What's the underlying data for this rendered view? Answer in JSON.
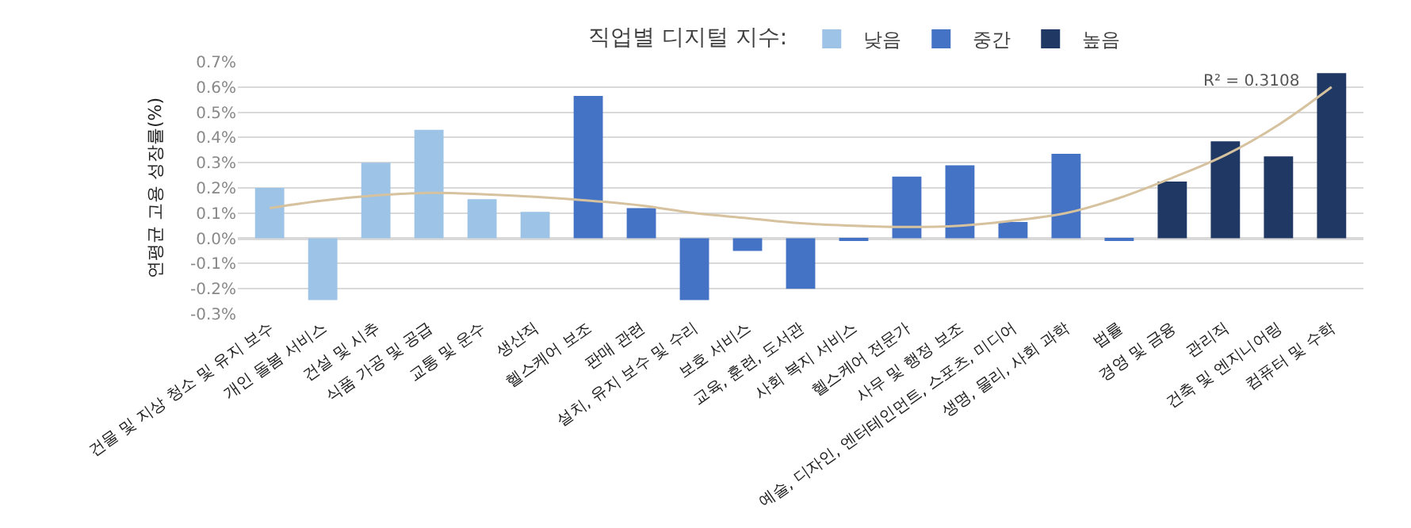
{
  "chart_data": {
    "type": "bar",
    "legend_title": "직업별 디지털 지수:",
    "ylabel": "연평균 고용 성장률(%)",
    "categories": [
      "건물 및 지상 청소 및 유지 보수",
      "개인 돌봄 서비스",
      "건설 및 시추",
      "식품 가공 및 공급",
      "교통 및 운수",
      "생산직",
      "헬스케어 보조",
      "판매 관련",
      "설치, 유지 보수 및 수리",
      "보호 서비스",
      "교육, 훈련, 도서관",
      "사회 복지 서비스",
      "헬스케어 전문가",
      "사무 및 행정 보조",
      "예술, 디자인, 엔터테인먼트, 스포츠, 미디어",
      "생명, 물리, 사회 과학",
      "법률",
      "경영 및 금융",
      "관리직",
      "건축 및 엔지니어링",
      "컴퓨터 및 수학"
    ],
    "series": [
      {
        "name": "낮음",
        "color": "#9dc3e6",
        "values": [
          0.2,
          -0.245,
          0.3,
          0.43,
          0.155,
          0.105,
          null,
          null,
          null,
          null,
          null,
          null,
          null,
          null,
          null,
          null,
          null,
          null,
          null,
          null,
          null
        ]
      },
      {
        "name": "중간",
        "color": "#4472c4",
        "values": [
          null,
          null,
          null,
          null,
          null,
          null,
          0.565,
          0.12,
          -0.245,
          -0.05,
          -0.2,
          -0.01,
          0.245,
          0.29,
          0.065,
          0.335,
          -0.01,
          null,
          null,
          null,
          null
        ]
      },
      {
        "name": "높음",
        "color": "#1f3864",
        "values": [
          null,
          null,
          null,
          null,
          null,
          null,
          null,
          null,
          null,
          null,
          null,
          null,
          null,
          null,
          null,
          null,
          null,
          0.225,
          0.385,
          0.325,
          0.655
        ]
      },
      {
        "type": "line",
        "color": "#d6c29e",
        "values": [
          0.12,
          0.15,
          0.17,
          0.18,
          0.175,
          0.165,
          0.15,
          0.13,
          0.1,
          0.08,
          0.06,
          0.05,
          0.045,
          0.05,
          0.07,
          0.1,
          0.16,
          0.24,
          0.33,
          0.45,
          0.6
        ]
      }
    ],
    "ylim": [
      -0.3,
      0.7
    ],
    "yticks": [
      {
        "value": -0.3,
        "label": "-0.3%"
      },
      {
        "value": -0.2,
        "label": "-0.2%"
      },
      {
        "value": -0.1,
        "label": "-0.1%"
      },
      {
        "value": 0,
        "label": "0.0%"
      },
      {
        "value": 0.1,
        "label": "0.1%"
      },
      {
        "value": 0.2,
        "label": "0.2%"
      },
      {
        "value": 0.3,
        "label": "0.3%"
      },
      {
        "value": 0.4,
        "label": "0.4%"
      },
      {
        "value": 0.5,
        "label": "0.5%"
      },
      {
        "value": 0.6,
        "label": "0.6%"
      },
      {
        "value": 0.7,
        "label": "0.7%"
      }
    ],
    "grid": "y",
    "legend": "top",
    "annotations": [
      "R² = 0.3108"
    ]
  }
}
